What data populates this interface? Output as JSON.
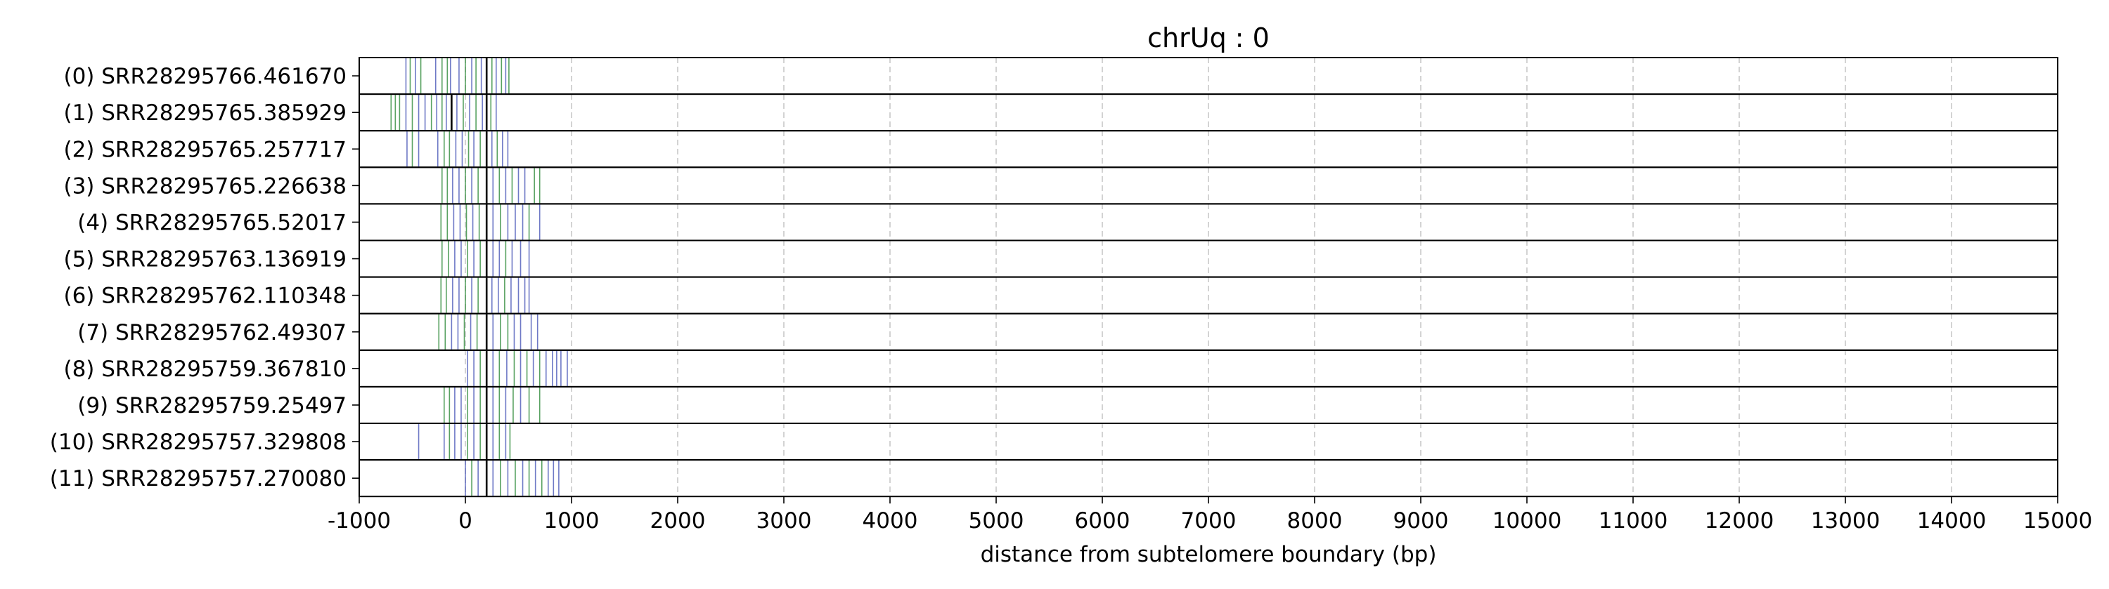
{
  "chart_data": {
    "type": "tick-track",
    "title": "chrUq : 0",
    "xlabel": "distance from subtelomere boundary (bp)",
    "ylabel": "",
    "xlim": [
      -1000,
      15000
    ],
    "xticks": [
      "-1000",
      "0",
      "1000",
      "2000",
      "3000",
      "4000",
      "5000",
      "6000",
      "7000",
      "8000",
      "9000",
      "10000",
      "11000",
      "12000",
      "13000",
      "14000",
      "15000"
    ],
    "grid": "vertical dashed at major ticks",
    "mark_colors": {
      "blue": "#4a57b8",
      "green": "#2e8b3a",
      "blackline": "#000000"
    },
    "rows": [
      {
        "label": "(0) SRR28295766.461670",
        "marks": [
          {
            "x": -560,
            "c": "b"
          },
          {
            "x": -520,
            "c": "g"
          },
          {
            "x": -470,
            "c": "b"
          },
          {
            "x": -420,
            "c": "g"
          },
          {
            "x": -280,
            "c": "b"
          },
          {
            "x": -220,
            "c": "g"
          },
          {
            "x": -170,
            "c": "g"
          },
          {
            "x": -140,
            "c": "b"
          },
          {
            "x": -60,
            "c": "b"
          },
          {
            "x": 0,
            "c": "g"
          },
          {
            "x": 60,
            "c": "b"
          },
          {
            "x": 100,
            "c": "g"
          },
          {
            "x": 150,
            "c": "b"
          },
          {
            "x": 200,
            "c": "k"
          },
          {
            "x": 250,
            "c": "g"
          },
          {
            "x": 290,
            "c": "b"
          },
          {
            "x": 340,
            "c": "g"
          },
          {
            "x": 380,
            "c": "b"
          },
          {
            "x": 410,
            "c": "g"
          }
        ]
      },
      {
        "label": "(1) SRR28295765.385929",
        "marks": [
          {
            "x": -700,
            "c": "g"
          },
          {
            "x": -660,
            "c": "g"
          },
          {
            "x": -620,
            "c": "g"
          },
          {
            "x": -560,
            "c": "b"
          },
          {
            "x": -500,
            "c": "g"
          },
          {
            "x": -440,
            "c": "b"
          },
          {
            "x": -380,
            "c": "b"
          },
          {
            "x": -320,
            "c": "g"
          },
          {
            "x": -270,
            "c": "b"
          },
          {
            "x": -220,
            "c": "g"
          },
          {
            "x": -180,
            "c": "b"
          },
          {
            "x": -130,
            "c": "k"
          },
          {
            "x": -80,
            "c": "b"
          },
          {
            "x": -20,
            "c": "g"
          },
          {
            "x": 40,
            "c": "b"
          },
          {
            "x": 100,
            "c": "g"
          },
          {
            "x": 160,
            "c": "b"
          },
          {
            "x": 200,
            "c": "k"
          },
          {
            "x": 240,
            "c": "g"
          },
          {
            "x": 290,
            "c": "b"
          }
        ]
      },
      {
        "label": "(2) SRR28295765.257717",
        "marks": [
          {
            "x": -550,
            "c": "b"
          },
          {
            "x": -500,
            "c": "g"
          },
          {
            "x": -440,
            "c": "b"
          },
          {
            "x": -260,
            "c": "b"
          },
          {
            "x": -200,
            "c": "g"
          },
          {
            "x": -150,
            "c": "g"
          },
          {
            "x": -90,
            "c": "b"
          },
          {
            "x": -30,
            "c": "b"
          },
          {
            "x": 30,
            "c": "g"
          },
          {
            "x": 80,
            "c": "b"
          },
          {
            "x": 140,
            "c": "g"
          },
          {
            "x": 200,
            "c": "k"
          },
          {
            "x": 250,
            "c": "b"
          },
          {
            "x": 300,
            "c": "g"
          },
          {
            "x": 350,
            "c": "b"
          },
          {
            "x": 400,
            "c": "b"
          }
        ]
      },
      {
        "label": "(3) SRR28295765.226638",
        "marks": [
          {
            "x": -220,
            "c": "g"
          },
          {
            "x": -170,
            "c": "g"
          },
          {
            "x": -120,
            "c": "b"
          },
          {
            "x": -60,
            "c": "b"
          },
          {
            "x": 0,
            "c": "g"
          },
          {
            "x": 60,
            "c": "b"
          },
          {
            "x": 120,
            "c": "g"
          },
          {
            "x": 200,
            "c": "k"
          },
          {
            "x": 260,
            "c": "b"
          },
          {
            "x": 320,
            "c": "g"
          },
          {
            "x": 380,
            "c": "b"
          },
          {
            "x": 440,
            "c": "g"
          },
          {
            "x": 500,
            "c": "b"
          },
          {
            "x": 560,
            "c": "b"
          },
          {
            "x": 650,
            "c": "g"
          },
          {
            "x": 700,
            "c": "g"
          }
        ]
      },
      {
        "label": "(4) SRR28295765.52017",
        "marks": [
          {
            "x": -230,
            "c": "g"
          },
          {
            "x": -170,
            "c": "g"
          },
          {
            "x": -110,
            "c": "b"
          },
          {
            "x": -50,
            "c": "b"
          },
          {
            "x": 10,
            "c": "g"
          },
          {
            "x": 70,
            "c": "b"
          },
          {
            "x": 130,
            "c": "g"
          },
          {
            "x": 200,
            "c": "k"
          },
          {
            "x": 260,
            "c": "b"
          },
          {
            "x": 330,
            "c": "g"
          },
          {
            "x": 400,
            "c": "b"
          },
          {
            "x": 470,
            "c": "b"
          },
          {
            "x": 540,
            "c": "b"
          },
          {
            "x": 600,
            "c": "g"
          },
          {
            "x": 700,
            "c": "b"
          }
        ]
      },
      {
        "label": "(5) SRR28295763.136919",
        "marks": [
          {
            "x": -220,
            "c": "g"
          },
          {
            "x": -160,
            "c": "g"
          },
          {
            "x": -100,
            "c": "b"
          },
          {
            "x": -40,
            "c": "b"
          },
          {
            "x": 20,
            "c": "g"
          },
          {
            "x": 80,
            "c": "b"
          },
          {
            "x": 140,
            "c": "g"
          },
          {
            "x": 200,
            "c": "k"
          },
          {
            "x": 260,
            "c": "b"
          },
          {
            "x": 320,
            "c": "b"
          },
          {
            "x": 380,
            "c": "g"
          },
          {
            "x": 440,
            "c": "b"
          },
          {
            "x": 520,
            "c": "b"
          },
          {
            "x": 600,
            "c": "b"
          }
        ]
      },
      {
        "label": "(6) SRR28295762.110348",
        "marks": [
          {
            "x": -230,
            "c": "g"
          },
          {
            "x": -180,
            "c": "g"
          },
          {
            "x": -120,
            "c": "b"
          },
          {
            "x": -60,
            "c": "b"
          },
          {
            "x": 0,
            "c": "g"
          },
          {
            "x": 60,
            "c": "b"
          },
          {
            "x": 120,
            "c": "g"
          },
          {
            "x": 200,
            "c": "k"
          },
          {
            "x": 250,
            "c": "b"
          },
          {
            "x": 310,
            "c": "b"
          },
          {
            "x": 370,
            "c": "g"
          },
          {
            "x": 430,
            "c": "b"
          },
          {
            "x": 500,
            "c": "b"
          },
          {
            "x": 560,
            "c": "b"
          },
          {
            "x": 600,
            "c": "b"
          }
        ]
      },
      {
        "label": "(7) SRR28295762.49307",
        "marks": [
          {
            "x": -250,
            "c": "g"
          },
          {
            "x": -190,
            "c": "g"
          },
          {
            "x": -130,
            "c": "b"
          },
          {
            "x": -70,
            "c": "b"
          },
          {
            "x": -10,
            "c": "g"
          },
          {
            "x": 50,
            "c": "b"
          },
          {
            "x": 110,
            "c": "g"
          },
          {
            "x": 200,
            "c": "k"
          },
          {
            "x": 260,
            "c": "b"
          },
          {
            "x": 330,
            "c": "g"
          },
          {
            "x": 400,
            "c": "g"
          },
          {
            "x": 460,
            "c": "b"
          },
          {
            "x": 520,
            "c": "b"
          },
          {
            "x": 620,
            "c": "b"
          },
          {
            "x": 680,
            "c": "b"
          }
        ]
      },
      {
        "label": "(8) SRR28295759.367810",
        "marks": [
          {
            "x": 20,
            "c": "b"
          },
          {
            "x": 80,
            "c": "b"
          },
          {
            "x": 140,
            "c": "g"
          },
          {
            "x": 200,
            "c": "k"
          },
          {
            "x": 260,
            "c": "b"
          },
          {
            "x": 320,
            "c": "g"
          },
          {
            "x": 390,
            "c": "b"
          },
          {
            "x": 460,
            "c": "g"
          },
          {
            "x": 520,
            "c": "b"
          },
          {
            "x": 580,
            "c": "g"
          },
          {
            "x": 640,
            "c": "b"
          },
          {
            "x": 700,
            "c": "g"
          },
          {
            "x": 760,
            "c": "b"
          },
          {
            "x": 820,
            "c": "b"
          },
          {
            "x": 860,
            "c": "b"
          },
          {
            "x": 900,
            "c": "b"
          },
          {
            "x": 960,
            "c": "b"
          }
        ]
      },
      {
        "label": "(9) SRR28295759.25497",
        "marks": [
          {
            "x": -200,
            "c": "g"
          },
          {
            "x": -150,
            "c": "g"
          },
          {
            "x": -100,
            "c": "b"
          },
          {
            "x": -40,
            "c": "b"
          },
          {
            "x": 20,
            "c": "g"
          },
          {
            "x": 80,
            "c": "b"
          },
          {
            "x": 140,
            "c": "g"
          },
          {
            "x": 200,
            "c": "k"
          },
          {
            "x": 260,
            "c": "b"
          },
          {
            "x": 320,
            "c": "g"
          },
          {
            "x": 380,
            "c": "b"
          },
          {
            "x": 450,
            "c": "g"
          },
          {
            "x": 520,
            "c": "b"
          },
          {
            "x": 600,
            "c": "g"
          },
          {
            "x": 700,
            "c": "g"
          }
        ]
      },
      {
        "label": "(10) SRR28295757.329808",
        "marks": [
          {
            "x": -440,
            "c": "b"
          },
          {
            "x": -200,
            "c": "b"
          },
          {
            "x": -150,
            "c": "g"
          },
          {
            "x": -100,
            "c": "b"
          },
          {
            "x": -40,
            "c": "b"
          },
          {
            "x": 20,
            "c": "g"
          },
          {
            "x": 80,
            "c": "b"
          },
          {
            "x": 140,
            "c": "g"
          },
          {
            "x": 200,
            "c": "k"
          },
          {
            "x": 260,
            "c": "b"
          },
          {
            "x": 320,
            "c": "g"
          },
          {
            "x": 380,
            "c": "b"
          },
          {
            "x": 420,
            "c": "g"
          }
        ]
      },
      {
        "label": "(11) SRR28295757.270080",
        "marks": [
          {
            "x": 0,
            "c": "b"
          },
          {
            "x": 60,
            "c": "g"
          },
          {
            "x": 120,
            "c": "b"
          },
          {
            "x": 200,
            "c": "k"
          },
          {
            "x": 260,
            "c": "b"
          },
          {
            "x": 330,
            "c": "g"
          },
          {
            "x": 400,
            "c": "b"
          },
          {
            "x": 470,
            "c": "g"
          },
          {
            "x": 540,
            "c": "b"
          },
          {
            "x": 600,
            "c": "g"
          },
          {
            "x": 660,
            "c": "b"
          },
          {
            "x": 720,
            "c": "g"
          },
          {
            "x": 780,
            "c": "b"
          },
          {
            "x": 830,
            "c": "b"
          },
          {
            "x": 880,
            "c": "b"
          }
        ]
      }
    ]
  }
}
